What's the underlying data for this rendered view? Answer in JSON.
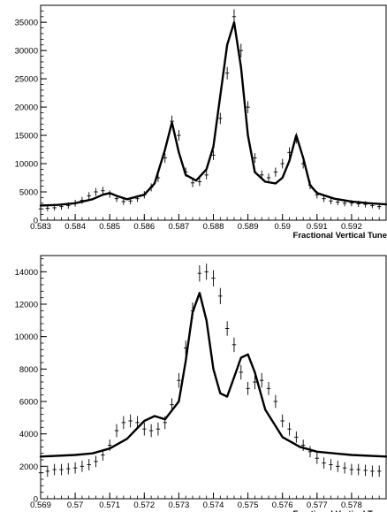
{
  "chart_data": [
    {
      "type": "scatter",
      "title": "",
      "xlabel": "Fractional Vertical Tune",
      "ylabel": "",
      "xlim": [
        0.583,
        0.593
      ],
      "ylim": [
        0,
        38000
      ],
      "grid": false,
      "x_ticks": [
        0.583,
        0.584,
        0.585,
        0.586,
        0.587,
        0.588,
        0.589,
        0.59,
        0.591,
        0.592
      ],
      "x_tick_labels": [
        "0.583",
        "0.584",
        "0.585",
        "0.586",
        "0.587",
        "0.588",
        "0.589",
        "0.59",
        "0.591",
        "0.592"
      ],
      "y_ticks": [
        0,
        5000,
        10000,
        15000,
        20000,
        25000,
        30000,
        35000
      ],
      "y_tick_labels": [
        "0",
        "5000",
        "10000",
        "15000",
        "20000",
        "25000",
        "30000",
        "35000"
      ],
      "series": [
        {
          "kind": "data-points-with-error-bars",
          "x": [
            0.583,
            0.5832,
            0.5834,
            0.5836,
            0.5838,
            0.584,
            0.5842,
            0.5844,
            0.5846,
            0.5848,
            0.585,
            0.5852,
            0.5854,
            0.5856,
            0.5858,
            0.586,
            0.5862,
            0.5864,
            0.5866,
            0.5868,
            0.587,
            0.5872,
            0.5874,
            0.5876,
            0.5878,
            0.588,
            0.5882,
            0.5884,
            0.5886,
            0.5888,
            0.589,
            0.5892,
            0.5894,
            0.5896,
            0.5898,
            0.59,
            0.5902,
            0.5904,
            0.5906,
            0.5908,
            0.591,
            0.5912,
            0.5914,
            0.5916,
            0.5918,
            0.592,
            0.5922,
            0.5924,
            0.5926,
            0.5928
          ],
          "y": [
            2000,
            2100,
            2200,
            2400,
            2600,
            3000,
            3500,
            4300,
            5000,
            5200,
            4600,
            3800,
            3300,
            3400,
            3800,
            4500,
            5800,
            7500,
            11000,
            17500,
            15000,
            8500,
            6600,
            6800,
            8000,
            11500,
            18000,
            26000,
            36000,
            30000,
            20000,
            11000,
            8000,
            7500,
            8500,
            10000,
            12000,
            14500,
            10000,
            6200,
            4500,
            3800,
            3400,
            3200,
            3000,
            3000,
            2900,
            2800,
            2600,
            2400
          ],
          "error": [
            500,
            500,
            500,
            550,
            550,
            600,
            600,
            650,
            700,
            700,
            650,
            600,
            600,
            600,
            600,
            650,
            700,
            750,
            850,
            1000,
            950,
            800,
            750,
            750,
            800,
            850,
            1000,
            1100,
            1300,
            1200,
            1050,
            850,
            800,
            750,
            800,
            850,
            900,
            950,
            850,
            750,
            650,
            600,
            600,
            550,
            550,
            550,
            550,
            550,
            500,
            500
          ]
        },
        {
          "kind": "fit-curve",
          "x": [
            0.583,
            0.5835,
            0.584,
            0.5845,
            0.5848,
            0.585,
            0.5852,
            0.5855,
            0.586,
            0.5863,
            0.5866,
            0.5868,
            0.587,
            0.5872,
            0.5875,
            0.5878,
            0.588,
            0.5882,
            0.5884,
            0.5886,
            0.5888,
            0.589,
            0.5892,
            0.5895,
            0.5898,
            0.59,
            0.5902,
            0.5904,
            0.5906,
            0.5908,
            0.591,
            0.5915,
            0.592,
            0.5925,
            0.593
          ],
          "y": [
            2600,
            2700,
            3000,
            3700,
            4500,
            4800,
            4300,
            3700,
            4500,
            6500,
            12500,
            17300,
            12000,
            8000,
            7000,
            9000,
            13000,
            22000,
            31000,
            35000,
            27000,
            15000,
            8500,
            6800,
            6500,
            7500,
            10500,
            15000,
            11000,
            6200,
            4800,
            3800,
            3300,
            3000,
            2800
          ]
        }
      ]
    },
    {
      "type": "scatter",
      "title": "",
      "xlabel": "Fractional Vertical Tune",
      "ylabel": "",
      "xlim": [
        0.569,
        0.579
      ],
      "ylim": [
        0,
        15000
      ],
      "grid": false,
      "x_ticks": [
        0.569,
        0.57,
        0.571,
        0.572,
        0.573,
        0.574,
        0.575,
        0.576,
        0.577,
        0.578
      ],
      "x_tick_labels": [
        "0.569",
        "0.57",
        "0.571",
        "0.572",
        "0.573",
        "0.574",
        "0.575",
        "0.576",
        "0.577",
        "0.578"
      ],
      "y_ticks": [
        0,
        2000,
        4000,
        6000,
        8000,
        10000,
        12000,
        14000
      ],
      "y_tick_labels": [
        "0",
        "2000",
        "4000",
        "6000",
        "8000",
        "10000",
        "12000",
        "14000"
      ],
      "series": [
        {
          "kind": "data-points-with-error-bars",
          "x": [
            0.569,
            0.5692,
            0.5694,
            0.5696,
            0.5698,
            0.57,
            0.5702,
            0.5704,
            0.5706,
            0.5708,
            0.571,
            0.5712,
            0.5714,
            0.5716,
            0.5718,
            0.572,
            0.5722,
            0.5724,
            0.5726,
            0.5728,
            0.573,
            0.5732,
            0.5734,
            0.5736,
            0.5738,
            0.574,
            0.5742,
            0.5744,
            0.5746,
            0.5748,
            0.575,
            0.5752,
            0.5754,
            0.5756,
            0.5758,
            0.576,
            0.5762,
            0.5764,
            0.5766,
            0.5768,
            0.577,
            0.5772,
            0.5774,
            0.5776,
            0.5778,
            0.578,
            0.5782,
            0.5784,
            0.5786,
            0.5788
          ],
          "y": [
            1600,
            1700,
            1800,
            1800,
            1850,
            1900,
            2000,
            2100,
            2300,
            2700,
            3300,
            4200,
            4700,
            4800,
            4700,
            4300,
            4200,
            4300,
            4700,
            5800,
            7300,
            9300,
            11600,
            13900,
            14000,
            13600,
            12500,
            10500,
            9500,
            7800,
            6800,
            7200,
            7300,
            6800,
            6000,
            4800,
            4300,
            3800,
            3300,
            2900,
            2500,
            2200,
            2100,
            2000,
            1900,
            1800,
            1800,
            1750,
            1700,
            1700
          ],
          "error": [
            350,
            350,
            350,
            350,
            350,
            350,
            350,
            350,
            350,
            350,
            350,
            400,
            400,
            400,
            400,
            400,
            400,
            400,
            400,
            400,
            450,
            450,
            500,
            500,
            500,
            500,
            500,
            450,
            450,
            450,
            400,
            450,
            450,
            400,
            400,
            400,
            400,
            350,
            350,
            350,
            350,
            350,
            350,
            350,
            350,
            350,
            350,
            350,
            350,
            350
          ]
        },
        {
          "kind": "fit-curve",
          "x": [
            0.569,
            0.57,
            0.5705,
            0.571,
            0.5715,
            0.572,
            0.5723,
            0.5726,
            0.573,
            0.5732,
            0.5734,
            0.5736,
            0.5738,
            0.574,
            0.5742,
            0.5744,
            0.5746,
            0.5748,
            0.575,
            0.5752,
            0.5755,
            0.576,
            0.5765,
            0.577,
            0.5775,
            0.578,
            0.579
          ],
          "y": [
            2600,
            2700,
            2800,
            3100,
            3700,
            4800,
            5100,
            4900,
            6000,
            8500,
            11500,
            12700,
            11000,
            8000,
            6500,
            6300,
            7500,
            8700,
            8900,
            7800,
            5500,
            3800,
            3200,
            2900,
            2800,
            2700,
            2600
          ]
        }
      ]
    }
  ]
}
